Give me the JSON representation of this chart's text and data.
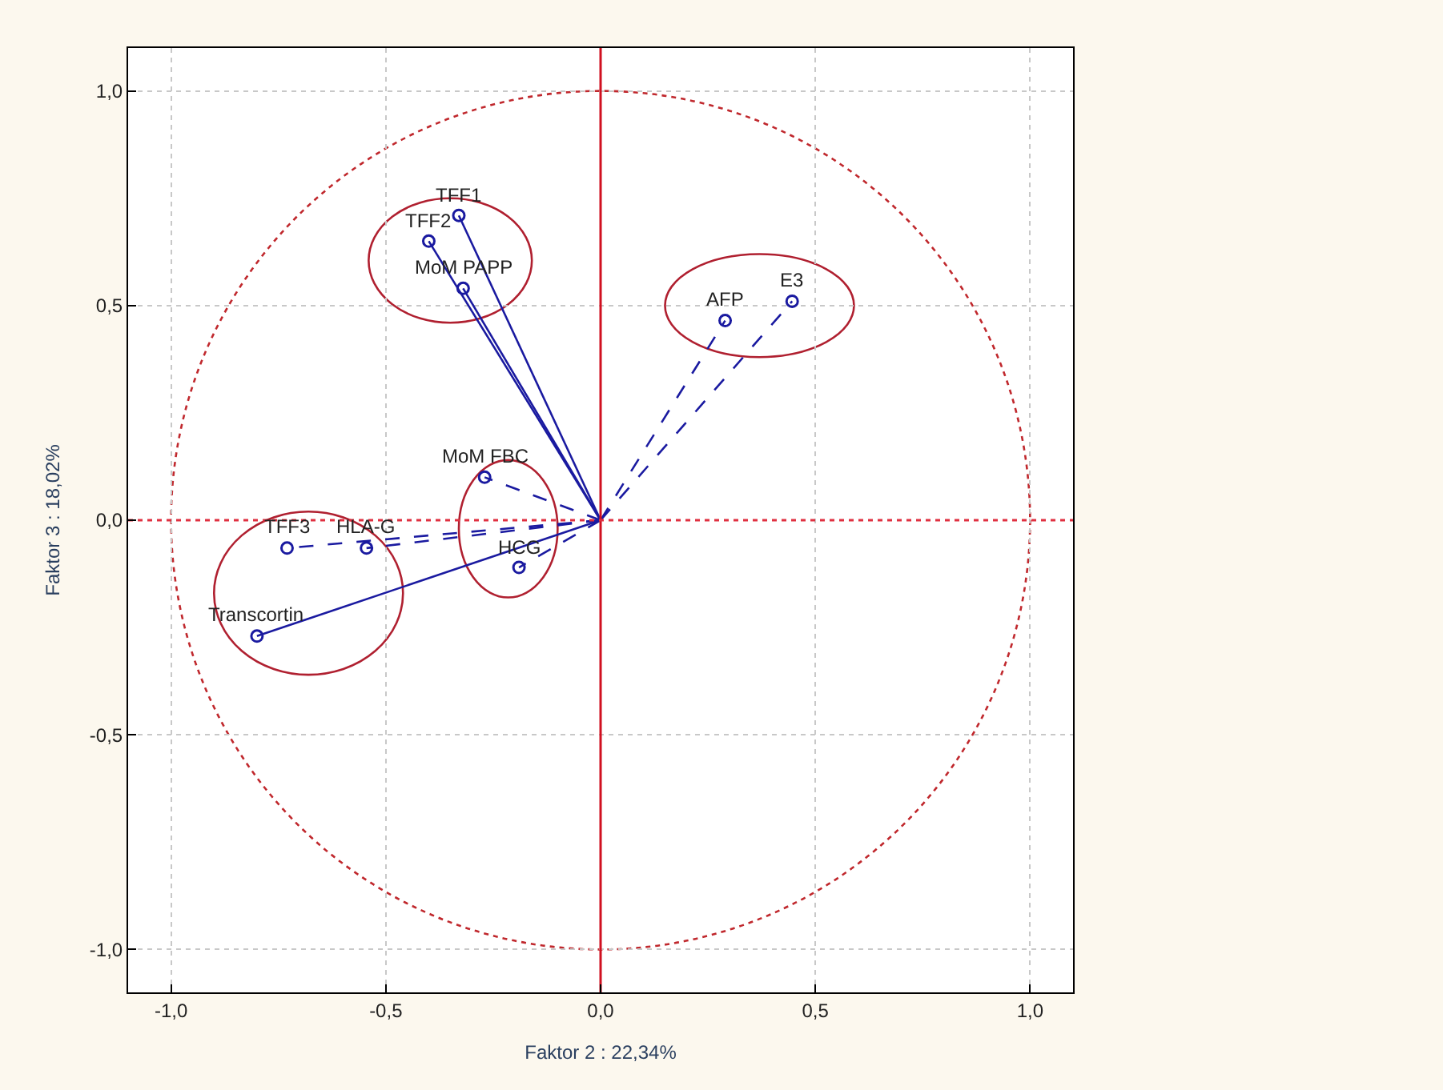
{
  "chart_data": {
    "type": "scatter",
    "xlabel": "Faktor 2 : 22,34%",
    "ylabel": "Faktor 3 : 18,02%",
    "xlim": [
      -1.1,
      1.1
    ],
    "ylim": [
      -1.1,
      1.1
    ],
    "xticks": [
      {
        "value": -1,
        "label": "-1,0"
      },
      {
        "value": -0.5,
        "label": "-0,5"
      },
      {
        "value": 0,
        "label": "0,0"
      },
      {
        "value": 0.5,
        "label": "0,5"
      },
      {
        "value": 1,
        "label": "1,0"
      }
    ],
    "yticks": [
      {
        "value": -1,
        "label": "-1,0"
      },
      {
        "value": -0.5,
        "label": "-0,5"
      },
      {
        "value": 0,
        "label": "0,0"
      },
      {
        "value": 0.5,
        "label": "0,5"
      },
      {
        "value": 1,
        "label": "1,0"
      }
    ],
    "grid": true,
    "ref_lines": [
      {
        "axis": "x",
        "value": 0,
        "color": "#d01020",
        "line_style": "solid"
      },
      {
        "axis": "y",
        "value": 0,
        "color": "#e03040",
        "line_style": "dotted"
      }
    ],
    "series": [
      {
        "type": "line",
        "color": "#1a1aa0",
        "line_style": "solid",
        "x": [
          0,
          -0.33,
          null,
          0,
          -0.4,
          null,
          0,
          -0.32,
          null,
          0,
          -0.8
        ],
        "values": [
          0,
          0.71,
          null,
          0,
          0.65,
          null,
          0,
          0.54,
          null,
          0,
          -0.27
        ]
      },
      {
        "type": "line",
        "color": "#1a1aa0",
        "line_style": "dashed",
        "x": [
          0,
          0.29,
          null,
          0,
          0.446,
          null,
          0,
          -0.27,
          null,
          0,
          -0.19,
          null,
          0,
          -0.73,
          null,
          0,
          -0.545
        ],
        "values": [
          0,
          0.465,
          null,
          0,
          0.51,
          null,
          0,
          0.1,
          null,
          0,
          -0.11,
          null,
          0,
          -0.065,
          null,
          0,
          -0.065
        ]
      },
      {
        "marker": "circle",
        "color": "#1a1aa0",
        "x": [
          -0.33,
          -0.4,
          -0.32,
          -0.8,
          0.29,
          0.446,
          -0.27,
          -0.19,
          -0.73,
          -0.545
        ],
        "values": [
          0.71,
          0.65,
          0.54,
          -0.27,
          0.465,
          0.51,
          0.1,
          -0.11,
          -0.065,
          -0.065
        ]
      }
    ],
    "annotations": [
      {
        "text": "TFF1",
        "x": -0.33,
        "y": 0.71
      },
      {
        "text": "TFF2",
        "x": -0.4,
        "y": 0.65
      },
      {
        "text": "MoM PAPP",
        "x": -0.32,
        "y": 0.54
      },
      {
        "text": "Transcortin",
        "x": -0.8,
        "y": -0.27
      },
      {
        "text": "AFP",
        "x": 0.29,
        "y": 0.465
      },
      {
        "text": "E3",
        "x": 0.446,
        "y": 0.51
      },
      {
        "text": "MoM FBC",
        "x": -0.27,
        "y": 0.1
      },
      {
        "text": "HCG",
        "x": -0.19,
        "y": -0.11
      },
      {
        "text": "TFF3",
        "x": -0.73,
        "y": -0.065
      },
      {
        "text": "HLA-G",
        "x": -0.545,
        "y": -0.065
      }
    ]
  }
}
